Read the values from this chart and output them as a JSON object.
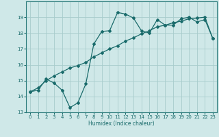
{
  "xlabel": "Humidex (Indice chaleur)",
  "bg_color": "#cfe8e8",
  "grid_color": "#a8cccc",
  "line_color": "#1a6b6b",
  "spine_color": "#2a7a7a",
  "xlim": [
    -0.5,
    23.5
  ],
  "ylim": [
    13,
    20
  ],
  "xticks": [
    0,
    1,
    2,
    3,
    4,
    5,
    6,
    7,
    8,
    9,
    10,
    11,
    12,
    13,
    14,
    15,
    16,
    17,
    18,
    19,
    20,
    21,
    22,
    23
  ],
  "yticks": [
    13,
    14,
    15,
    16,
    17,
    18,
    19
  ],
  "line1_x": [
    0,
    1,
    2,
    3,
    4,
    5,
    6,
    7,
    8,
    9,
    10,
    11,
    12,
    13,
    14,
    15,
    16,
    17,
    18,
    19,
    20,
    21,
    22,
    23
  ],
  "line1_y": [
    14.3,
    14.4,
    15.1,
    14.85,
    14.4,
    13.3,
    13.6,
    14.8,
    17.3,
    18.1,
    18.15,
    19.3,
    19.2,
    18.95,
    18.15,
    18.0,
    18.85,
    18.5,
    18.5,
    18.9,
    19.0,
    18.7,
    18.85,
    17.65
  ],
  "line2_x": [
    0,
    1,
    2,
    3,
    4,
    5,
    6,
    7,
    8,
    9,
    10,
    11,
    12,
    13,
    14,
    15,
    16,
    17,
    18,
    19,
    20,
    21,
    22,
    23
  ],
  "line2_y": [
    14.3,
    14.55,
    15.0,
    15.3,
    15.55,
    15.8,
    15.95,
    16.15,
    16.5,
    16.75,
    17.0,
    17.2,
    17.5,
    17.7,
    17.95,
    18.15,
    18.4,
    18.5,
    18.65,
    18.75,
    18.9,
    18.95,
    19.0,
    17.65
  ]
}
